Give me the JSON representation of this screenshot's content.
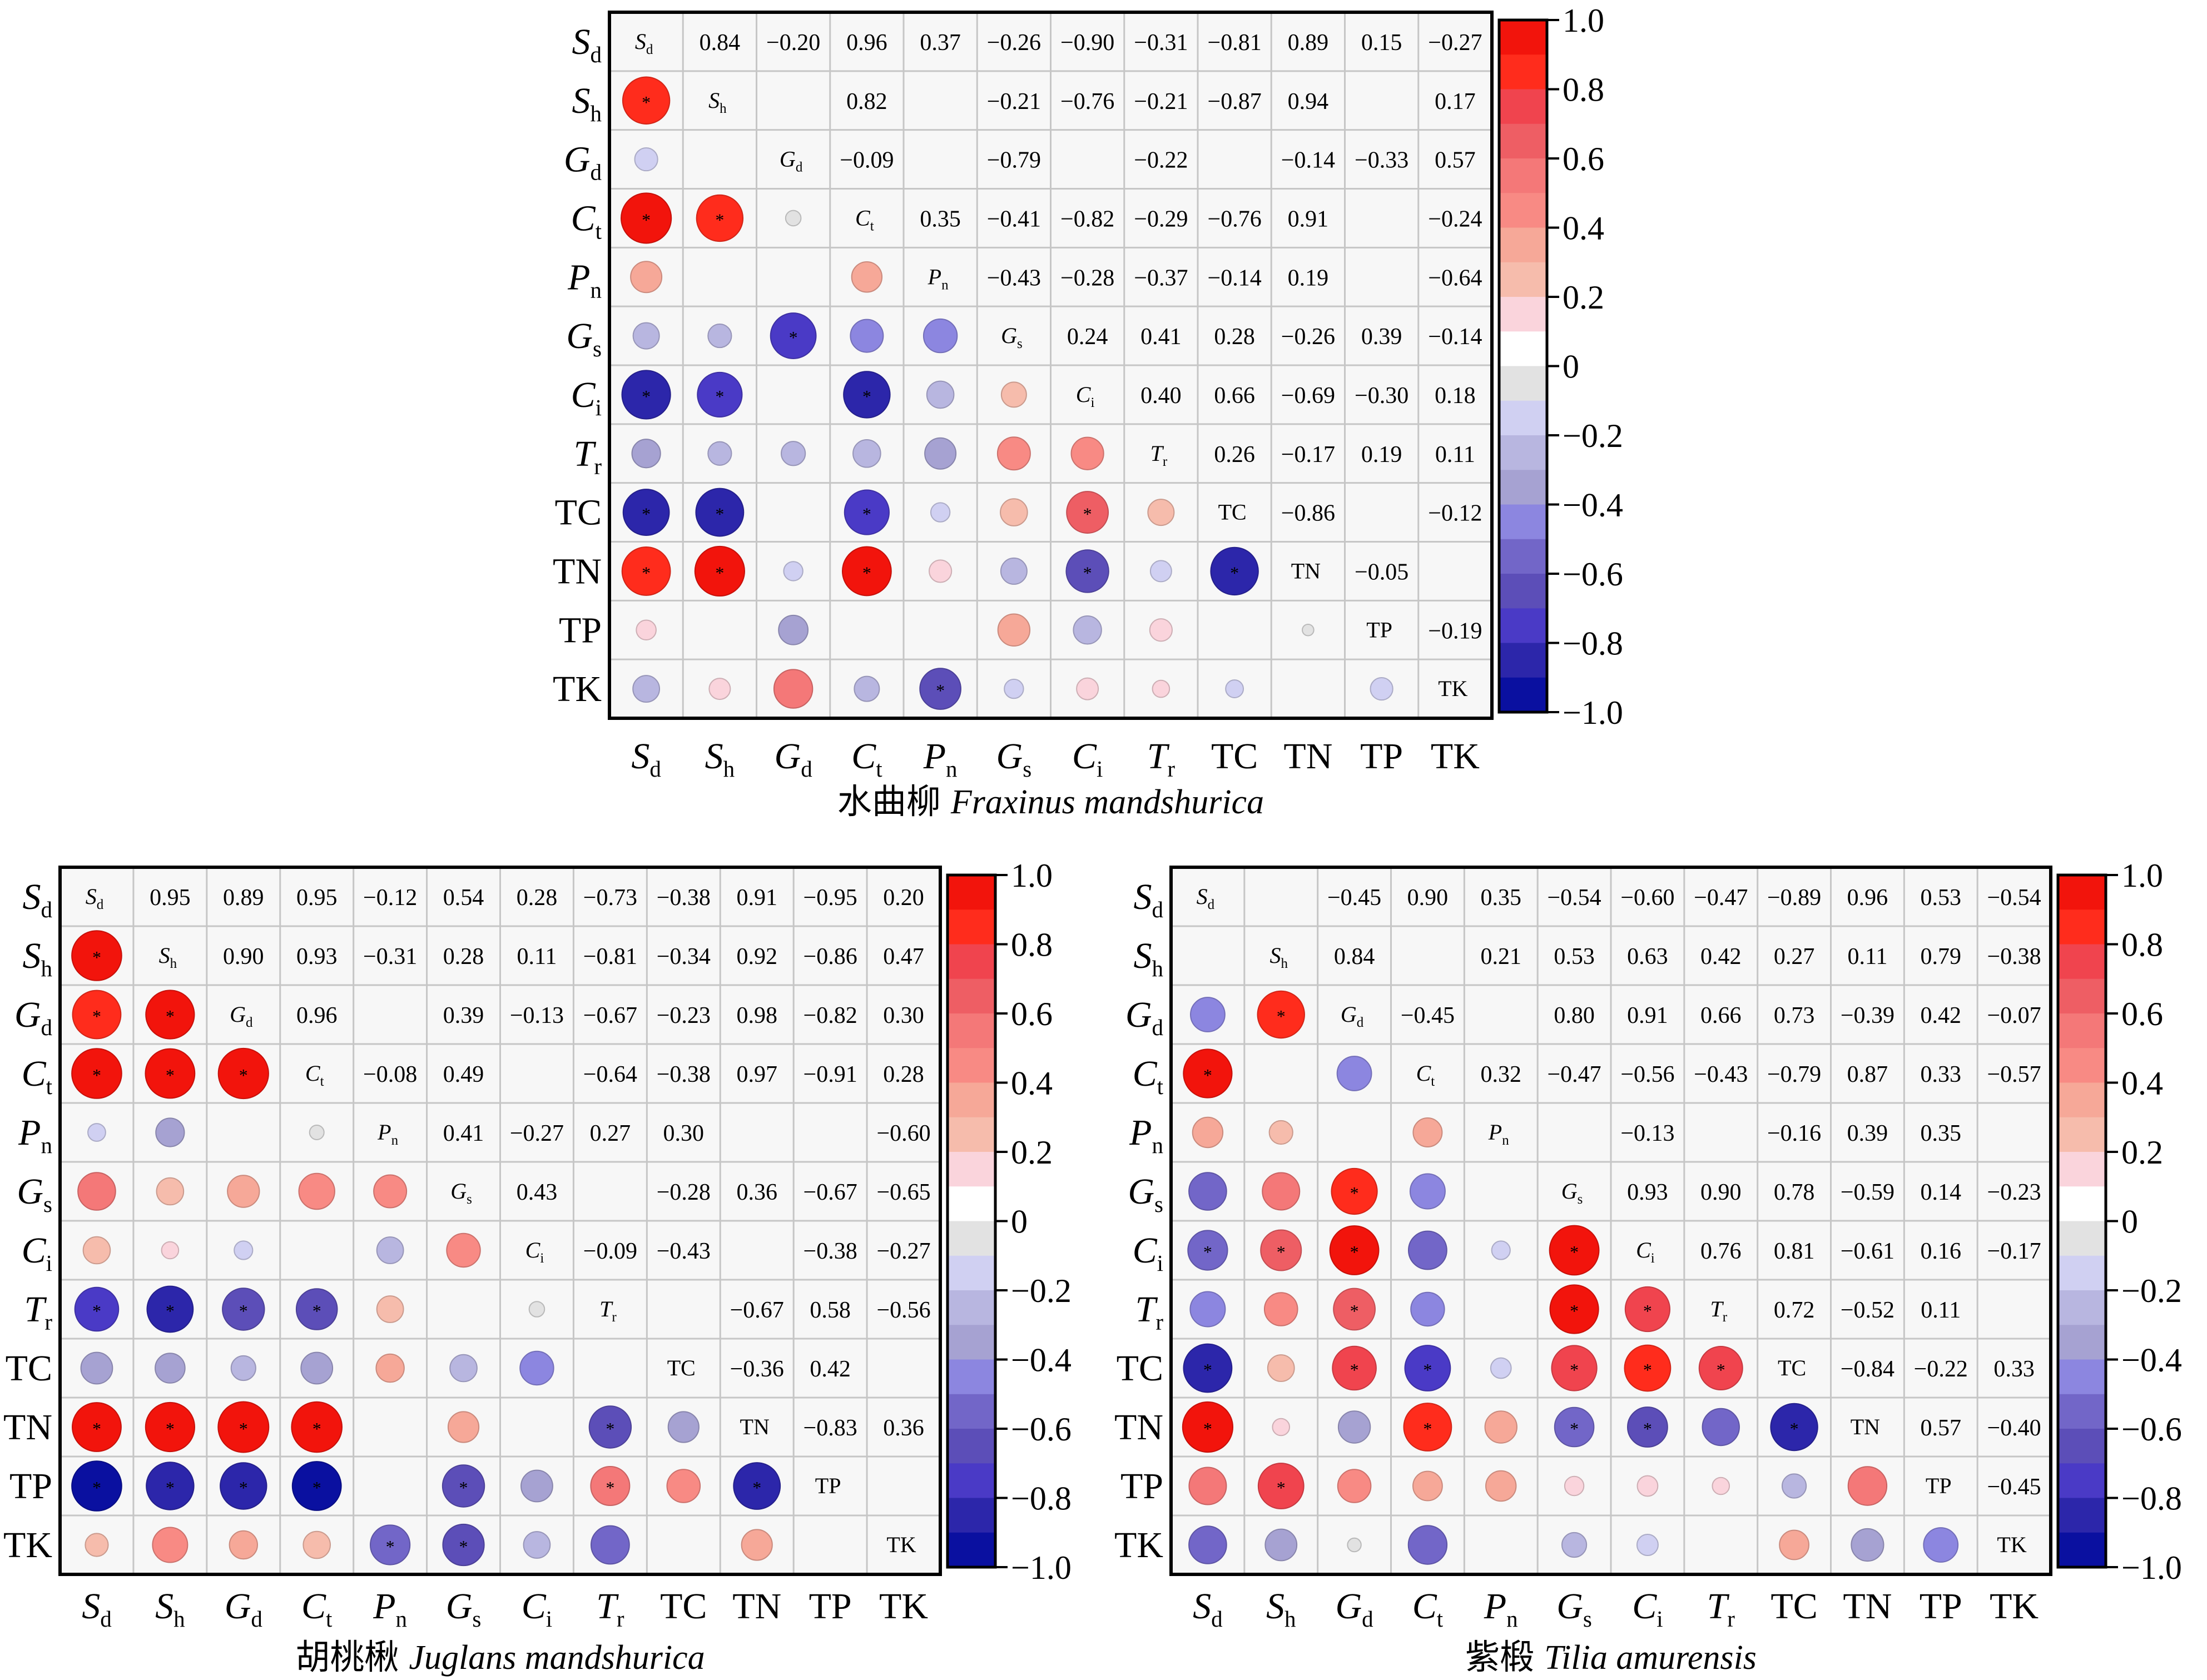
{
  "colormap": [
    {
      "from": 0.9,
      "to": 1.0,
      "color": "#f2140c"
    },
    {
      "from": 0.8,
      "to": 0.9,
      "color": "#ff2c1c"
    },
    {
      "from": 0.7,
      "to": 0.8,
      "color": "#f0444e"
    },
    {
      "from": 0.6,
      "to": 0.7,
      "color": "#ee5e64"
    },
    {
      "from": 0.5,
      "to": 0.6,
      "color": "#f47878"
    },
    {
      "from": 0.4,
      "to": 0.5,
      "color": "#f88a84"
    },
    {
      "from": 0.3,
      "to": 0.4,
      "color": "#f6a898"
    },
    {
      "from": 0.2,
      "to": 0.3,
      "color": "#f6bcac"
    },
    {
      "from": 0.1,
      "to": 0.2,
      "color": "#fad4dc"
    },
    {
      "from": 0.0,
      "to": 0.1,
      "color": "#ffffff"
    },
    {
      "from": -0.1,
      "to": 0.0,
      "color": "#e2e2e2"
    },
    {
      "from": -0.2,
      "to": -0.1,
      "color": "#d0d0f2"
    },
    {
      "from": -0.3,
      "to": -0.2,
      "color": "#b8b6e0"
    },
    {
      "from": -0.4,
      "to": -0.3,
      "color": "#a6a2d2"
    },
    {
      "from": -0.5,
      "to": -0.4,
      "color": "#8c86e0"
    },
    {
      "from": -0.6,
      "to": -0.5,
      "color": "#7266c8"
    },
    {
      "from": -0.7,
      "to": -0.6,
      "color": "#5c4eb8"
    },
    {
      "from": -0.8,
      "to": -0.7,
      "color": "#4a3ac6"
    },
    {
      "from": -0.9,
      "to": -0.8,
      "color": "#2c26aa"
    },
    {
      "from": -1.0,
      "to": -0.9,
      "color": "#0a10a0"
    }
  ],
  "chart_data": [
    {
      "type": "heatmap",
      "style": "correlation matrix: circles (lower triangle), values (upper triangle)",
      "title": "水曲柳 Fraxinus mandshurica",
      "title_cn": "水曲柳",
      "title_latin": "Fraxinus mandshurica",
      "xlabel": "",
      "ylabel": "",
      "variables": [
        {
          "symbol": "S",
          "sub": "d",
          "italic": true
        },
        {
          "symbol": "S",
          "sub": "h",
          "italic": true
        },
        {
          "symbol": "G",
          "sub": "d",
          "italic": true
        },
        {
          "symbol": "C",
          "sub": "t",
          "italic": true
        },
        {
          "symbol": "P",
          "sub": "n",
          "italic": true
        },
        {
          "symbol": "G",
          "sub": "s",
          "italic": true
        },
        {
          "symbol": "C",
          "sub": "i",
          "italic": true
        },
        {
          "symbol": "T",
          "sub": "r",
          "italic": true
        },
        {
          "symbol": "TC",
          "sub": "",
          "italic": false
        },
        {
          "symbol": "TN",
          "sub": "",
          "italic": false
        },
        {
          "symbol": "TP",
          "sub": "",
          "italic": false
        },
        {
          "symbol": "TK",
          "sub": "",
          "italic": false
        }
      ],
      "matrix": [
        [
          1,
          0.84,
          -0.2,
          0.96,
          0.37,
          -0.26,
          -0.9,
          -0.31,
          -0.81,
          0.89,
          0.15,
          -0.27
        ],
        [
          0.84,
          1,
          null,
          0.82,
          null,
          -0.21,
          -0.76,
          -0.21,
          -0.87,
          0.94,
          null,
          0.17
        ],
        [
          -0.2,
          null,
          1,
          -0.09,
          null,
          -0.79,
          null,
          -0.22,
          null,
          -0.14,
          -0.33,
          0.57
        ],
        [
          0.96,
          0.82,
          -0.09,
          1,
          0.35,
          -0.41,
          -0.82,
          -0.29,
          -0.76,
          0.91,
          null,
          -0.24
        ],
        [
          0.37,
          null,
          null,
          0.35,
          1,
          -0.43,
          -0.28,
          -0.37,
          -0.14,
          0.19,
          null,
          -0.64
        ],
        [
          -0.26,
          -0.21,
          -0.79,
          -0.41,
          -0.43,
          1,
          0.24,
          0.41,
          0.28,
          -0.26,
          0.39,
          -0.14
        ],
        [
          -0.9,
          -0.76,
          null,
          -0.82,
          -0.28,
          0.24,
          1,
          0.4,
          0.66,
          -0.69,
          -0.3,
          0.18
        ],
        [
          -0.31,
          -0.21,
          -0.22,
          -0.29,
          -0.37,
          0.41,
          0.4,
          1,
          0.26,
          -0.17,
          0.19,
          0.11
        ],
        [
          -0.81,
          -0.87,
          null,
          -0.76,
          -0.14,
          0.28,
          0.66,
          0.26,
          1,
          -0.86,
          null,
          -0.12
        ],
        [
          0.89,
          0.94,
          -0.14,
          0.91,
          0.19,
          -0.26,
          -0.69,
          -0.17,
          -0.86,
          1,
          -0.05,
          null
        ],
        [
          0.15,
          null,
          -0.33,
          null,
          null,
          0.39,
          -0.3,
          0.19,
          null,
          -0.05,
          1,
          -0.19
        ],
        [
          -0.27,
          0.17,
          0.57,
          -0.24,
          -0.64,
          -0.14,
          0.18,
          0.11,
          -0.12,
          null,
          -0.19,
          1
        ]
      ],
      "significance_marker": "*",
      "significant_pairs": [
        [
          "Sd",
          "Sh"
        ],
        [
          "Sd",
          "Ct"
        ],
        [
          "Sd",
          "Ci"
        ],
        [
          "Sd",
          "TC"
        ],
        [
          "Sd",
          "TN"
        ],
        [
          "Sh",
          "Ct"
        ],
        [
          "Sh",
          "Ci"
        ],
        [
          "Sh",
          "TC"
        ],
        [
          "Sh",
          "TN"
        ],
        [
          "Gd",
          "Gs"
        ],
        [
          "Ct",
          "Ci"
        ],
        [
          "Ct",
          "TC"
        ],
        [
          "Ct",
          "TN"
        ],
        [
          "Pn",
          "TK"
        ],
        [
          "Ci",
          "TC"
        ],
        [
          "Ci",
          "TN"
        ],
        [
          "TC",
          "TN"
        ]
      ],
      "colorbar": {
        "range": [
          -1.0,
          1.0
        ],
        "tick_values": [
          1.0,
          0.8,
          0.6,
          0.4,
          0.2,
          0,
          -0.2,
          -0.4,
          -0.6,
          -0.8,
          -1.0
        ],
        "tick_labels": [
          "1.0",
          "0.8",
          "0.6",
          "0.4",
          "0.2",
          "0",
          "−0.2",
          "−0.4",
          "−0.6",
          "−0.8",
          "−1.0"
        ]
      }
    },
    {
      "type": "heatmap",
      "style": "correlation matrix: circles (lower triangle), values (upper triangle)",
      "title": "胡桃楸 Juglans mandshurica",
      "title_cn": "胡桃楸",
      "title_latin": "Juglans mandshurica",
      "xlabel": "",
      "ylabel": "",
      "variables": [
        {
          "symbol": "S",
          "sub": "d",
          "italic": true
        },
        {
          "symbol": "S",
          "sub": "h",
          "italic": true
        },
        {
          "symbol": "G",
          "sub": "d",
          "italic": true
        },
        {
          "symbol": "C",
          "sub": "t",
          "italic": true
        },
        {
          "symbol": "P",
          "sub": "n",
          "italic": true
        },
        {
          "symbol": "G",
          "sub": "s",
          "italic": true
        },
        {
          "symbol": "C",
          "sub": "i",
          "italic": true
        },
        {
          "symbol": "T",
          "sub": "r",
          "italic": true
        },
        {
          "symbol": "TC",
          "sub": "",
          "italic": false
        },
        {
          "symbol": "TN",
          "sub": "",
          "italic": false
        },
        {
          "symbol": "TP",
          "sub": "",
          "italic": false
        },
        {
          "symbol": "TK",
          "sub": "",
          "italic": false
        }
      ],
      "matrix": [
        [
          1,
          0.95,
          0.89,
          0.95,
          -0.12,
          0.54,
          0.28,
          -0.73,
          -0.38,
          0.91,
          -0.95,
          0.2
        ],
        [
          0.95,
          1,
          0.9,
          0.93,
          -0.31,
          0.28,
          0.11,
          -0.81,
          -0.34,
          0.92,
          -0.86,
          0.47
        ],
        [
          0.89,
          0.9,
          1,
          0.96,
          null,
          0.39,
          -0.13,
          -0.67,
          -0.23,
          0.98,
          -0.82,
          0.3
        ],
        [
          0.95,
          0.93,
          0.96,
          1,
          -0.08,
          0.49,
          null,
          -0.64,
          -0.38,
          0.97,
          -0.91,
          0.28
        ],
        [
          -0.12,
          -0.31,
          null,
          -0.08,
          1,
          0.41,
          -0.27,
          0.27,
          0.3,
          null,
          null,
          -0.6
        ],
        [
          0.54,
          0.28,
          0.39,
          0.49,
          0.41,
          1,
          0.43,
          null,
          -0.28,
          0.36,
          -0.67,
          -0.65
        ],
        [
          0.28,
          0.11,
          -0.13,
          null,
          -0.27,
          0.43,
          1,
          -0.09,
          -0.43,
          null,
          -0.38,
          -0.27
        ],
        [
          -0.73,
          -0.81,
          -0.67,
          -0.64,
          0.27,
          null,
          -0.09,
          1,
          null,
          -0.67,
          0.58,
          -0.56
        ],
        [
          -0.38,
          -0.34,
          -0.23,
          -0.38,
          0.3,
          -0.28,
          -0.43,
          null,
          1,
          -0.36,
          0.42,
          null
        ],
        [
          0.91,
          0.92,
          0.98,
          0.97,
          null,
          0.36,
          null,
          -0.67,
          -0.36,
          1,
          -0.83,
          0.36
        ],
        [
          -0.95,
          -0.86,
          -0.82,
          -0.91,
          null,
          -0.67,
          -0.38,
          0.58,
          0.42,
          -0.83,
          1,
          null
        ],
        [
          0.2,
          0.47,
          0.3,
          0.28,
          -0.6,
          -0.65,
          -0.27,
          -0.56,
          null,
          0.36,
          null,
          1
        ]
      ],
      "significance_marker": "*",
      "significant_pairs": [
        [
          "Sd",
          "Sh"
        ],
        [
          "Sd",
          "Gd"
        ],
        [
          "Sd",
          "Ct"
        ],
        [
          "Sd",
          "Tr"
        ],
        [
          "Sd",
          "TN"
        ],
        [
          "Sd",
          "TP"
        ],
        [
          "Sh",
          "Gd"
        ],
        [
          "Sh",
          "Ct"
        ],
        [
          "Sh",
          "Tr"
        ],
        [
          "Sh",
          "TN"
        ],
        [
          "Sh",
          "TP"
        ],
        [
          "Gd",
          "Ct"
        ],
        [
          "Gd",
          "Tr"
        ],
        [
          "Gd",
          "TN"
        ],
        [
          "Gd",
          "TP"
        ],
        [
          "Ct",
          "Tr"
        ],
        [
          "Ct",
          "TN"
        ],
        [
          "Ct",
          "TP"
        ],
        [
          "Pn",
          "TK"
        ],
        [
          "Gs",
          "TP"
        ],
        [
          "Gs",
          "TK"
        ],
        [
          "Tr",
          "TN"
        ],
        [
          "Tr",
          "TP"
        ],
        [
          "TN",
          "TP"
        ]
      ],
      "colorbar": {
        "range": [
          -1.0,
          1.0
        ],
        "tick_values": [
          1.0,
          0.8,
          0.6,
          0.4,
          0.2,
          0,
          -0.2,
          -0.4,
          -0.6,
          -0.8,
          -1.0
        ],
        "tick_labels": [
          "1.0",
          "0.8",
          "0.6",
          "0.4",
          "0.2",
          "0",
          "−0.2",
          "−0.4",
          "−0.6",
          "−0.8",
          "−1.0"
        ]
      }
    },
    {
      "type": "heatmap",
      "style": "correlation matrix: circles (lower triangle), values (upper triangle)",
      "title": "紫椴 Tilia amurensis",
      "title_cn": "紫椴",
      "title_latin": "Tilia amurensis",
      "xlabel": "",
      "ylabel": "",
      "variables": [
        {
          "symbol": "S",
          "sub": "d",
          "italic": true
        },
        {
          "symbol": "S",
          "sub": "h",
          "italic": true
        },
        {
          "symbol": "G",
          "sub": "d",
          "italic": true
        },
        {
          "symbol": "C",
          "sub": "t",
          "italic": true
        },
        {
          "symbol": "P",
          "sub": "n",
          "italic": true
        },
        {
          "symbol": "G",
          "sub": "s",
          "italic": true
        },
        {
          "symbol": "C",
          "sub": "i",
          "italic": true
        },
        {
          "symbol": "T",
          "sub": "r",
          "italic": true
        },
        {
          "symbol": "TC",
          "sub": "",
          "italic": false
        },
        {
          "symbol": "TN",
          "sub": "",
          "italic": false
        },
        {
          "symbol": "TP",
          "sub": "",
          "italic": false
        },
        {
          "symbol": "TK",
          "sub": "",
          "italic": false
        }
      ],
      "matrix": [
        [
          1,
          null,
          -0.45,
          0.9,
          0.35,
          -0.54,
          -0.6,
          -0.47,
          -0.89,
          0.96,
          0.53,
          -0.54
        ],
        [
          null,
          1,
          0.84,
          null,
          0.21,
          0.53,
          0.63,
          0.42,
          0.27,
          0.11,
          0.79,
          -0.38
        ],
        [
          -0.45,
          0.84,
          1,
          -0.45,
          null,
          0.8,
          0.91,
          0.66,
          0.73,
          -0.39,
          0.42,
          -0.07
        ],
        [
          0.9,
          null,
          -0.45,
          1,
          0.32,
          -0.47,
          -0.56,
          -0.43,
          -0.79,
          0.87,
          0.33,
          -0.57
        ],
        [
          0.35,
          0.21,
          null,
          0.32,
          1,
          null,
          -0.13,
          null,
          -0.16,
          0.39,
          0.35,
          null
        ],
        [
          -0.54,
          0.53,
          0.8,
          -0.47,
          null,
          1,
          0.93,
          0.9,
          0.78,
          -0.59,
          0.14,
          -0.23
        ],
        [
          -0.6,
          0.63,
          0.91,
          -0.56,
          -0.13,
          0.93,
          1,
          0.76,
          0.81,
          -0.61,
          0.16,
          -0.17
        ],
        [
          -0.47,
          0.42,
          0.66,
          -0.43,
          null,
          0.9,
          0.76,
          1,
          0.72,
          -0.52,
          0.11,
          null
        ],
        [
          -0.89,
          0.27,
          0.73,
          -0.79,
          -0.16,
          0.78,
          0.81,
          0.72,
          1,
          -0.84,
          -0.22,
          0.33
        ],
        [
          0.96,
          0.11,
          -0.39,
          0.87,
          0.39,
          -0.59,
          -0.61,
          -0.52,
          -0.84,
          1,
          0.57,
          -0.4
        ],
        [
          0.53,
          0.79,
          0.42,
          0.33,
          0.35,
          0.14,
          0.16,
          0.11,
          -0.22,
          0.57,
          1,
          -0.45
        ],
        [
          -0.54,
          -0.38,
          -0.07,
          -0.57,
          null,
          -0.23,
          -0.17,
          null,
          0.33,
          -0.4,
          -0.45,
          1
        ]
      ],
      "significance_marker": "*",
      "significant_pairs": [
        [
          "Sd",
          "Ct"
        ],
        [
          "Sd",
          "Ci"
        ],
        [
          "Sd",
          "TC"
        ],
        [
          "Sd",
          "TN"
        ],
        [
          "Sh",
          "Gd"
        ],
        [
          "Sh",
          "Ci"
        ],
        [
          "Sh",
          "TP"
        ],
        [
          "Gd",
          "Gs"
        ],
        [
          "Gd",
          "Ci"
        ],
        [
          "Gd",
          "Tr"
        ],
        [
          "Gd",
          "TC"
        ],
        [
          "Ct",
          "TC"
        ],
        [
          "Ct",
          "TN"
        ],
        [
          "Gs",
          "Ci"
        ],
        [
          "Gs",
          "Tr"
        ],
        [
          "Gs",
          "TC"
        ],
        [
          "Gs",
          "TN"
        ],
        [
          "Ci",
          "Tr"
        ],
        [
          "Ci",
          "TC"
        ],
        [
          "Ci",
          "TN"
        ],
        [
          "Tr",
          "TC"
        ],
        [
          "TC",
          "TN"
        ]
      ],
      "colorbar": {
        "range": [
          -1.0,
          1.0
        ],
        "tick_values": [
          1.0,
          0.8,
          0.6,
          0.4,
          0.2,
          0,
          -0.2,
          -0.4,
          -0.6,
          -0.8,
          -1.0
        ],
        "tick_labels": [
          "1.0",
          "0.8",
          "0.6",
          "0.4",
          "0.2",
          "0",
          "−0.2",
          "−0.4",
          "−0.6",
          "−0.8",
          "−1.0"
        ]
      }
    }
  ]
}
